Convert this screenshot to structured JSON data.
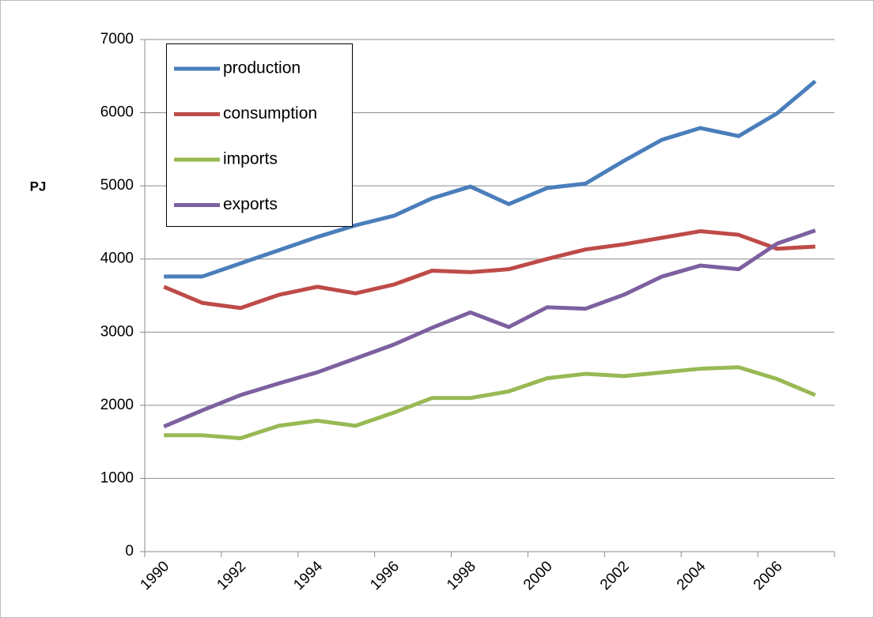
{
  "chart_data": {
    "type": "line",
    "y_label": "PJ",
    "categories": [
      "1990",
      null,
      "1992",
      null,
      "1994",
      null,
      "1996",
      null,
      "1998",
      null,
      "2000",
      null,
      "2002",
      null,
      "2004",
      null,
      "2006",
      null
    ],
    "series": [
      {
        "name": "production",
        "color": "#4a7ebb",
        "values": [
          3760,
          3760,
          3940,
          4120,
          4300,
          4460,
          4590,
          4830,
          4990,
          4750,
          4970,
          5030,
          5340,
          5630,
          5790,
          5680,
          5990,
          6430
        ]
      },
      {
        "name": "consumption",
        "color": "#be4b48",
        "values": [
          3620,
          3400,
          3330,
          3510,
          3620,
          3530,
          3650,
          3840,
          3820,
          3860,
          4000,
          4130,
          4200,
          4290,
          4380,
          4330,
          4140,
          4170
        ]
      },
      {
        "name": "imports",
        "color": "#98b954",
        "values": [
          1590,
          1590,
          1550,
          1720,
          1790,
          1720,
          1900,
          2100,
          2100,
          2190,
          2370,
          2430,
          2400,
          2450,
          2500,
          2520,
          2360,
          2140
        ]
      },
      {
        "name": "exports",
        "color": "#7d60a0",
        "values": [
          1710,
          1930,
          2140,
          2300,
          2450,
          2640,
          2830,
          3060,
          3270,
          3070,
          3340,
          3320,
          3510,
          3760,
          3910,
          3860,
          4210,
          4390
        ]
      }
    ],
    "ylim": [
      0,
      7000
    ],
    "yticks": [
      0,
      1000,
      2000,
      3000,
      4000,
      5000,
      6000,
      7000
    ],
    "grid": true,
    "legend": "upper-left"
  }
}
